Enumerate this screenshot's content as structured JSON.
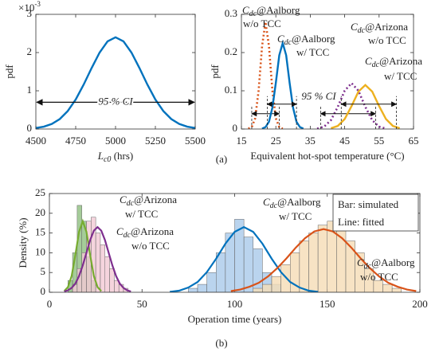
{
  "chart_data": [
    {
      "type": "line",
      "y_label": "pdf",
      "x_label": [
        "L",
        "c0",
        " (hrs)"
      ],
      "y_multiplier": [
        "×10",
        "-3"
      ],
      "xlim": [
        4500,
        5500
      ],
      "ylim": [
        0,
        3
      ],
      "xticks": [
        4500,
        4750,
        5000,
        5250,
        5500
      ],
      "yticks": [
        0,
        1,
        2,
        3
      ],
      "series": [
        {
          "color": "#0072bd",
          "line_style": "solid",
          "x": [
            4500,
            4550,
            4600,
            4650,
            4700,
            4750,
            4800,
            4850,
            4900,
            4950,
            5000,
            5050,
            5100,
            5150,
            5200,
            5250,
            5300,
            5350,
            5400,
            5450,
            5500
          ],
          "values": [
            0.026,
            0.061,
            0.132,
            0.26,
            0.469,
            0.772,
            1.162,
            1.596,
            2.0,
            2.294,
            2.4,
            2.294,
            2.0,
            1.596,
            1.162,
            0.772,
            0.469,
            0.26,
            0.132,
            0.061,
            0.026
          ]
        }
      ],
      "annotation": {
        "text": "95 % CI",
        "x": [
          4500,
          5500
        ],
        "y": 0.7
      }
    },
    {
      "type": "line",
      "y_label": "pdf",
      "x_label": "Equivalent hot-spot temperature (°C)",
      "xlim": [
        15,
        65
      ],
      "ylim": [
        0,
        0.3
      ],
      "xticks": [
        15,
        25,
        35,
        45,
        55,
        65
      ],
      "yticks": [
        0,
        0.1,
        0.2,
        0.3
      ],
      "annotation": {
        "text": "95 % CI"
      },
      "series": [
        {
          "label": [
            "C",
            "dc",
            "@Aalborg",
            "w/o TCC"
          ],
          "color": "#d95319",
          "line_style": "dotted",
          "x": [
            17,
            18,
            19,
            20,
            21,
            22,
            23,
            24,
            25,
            26,
            27
          ],
          "values": [
            0.001,
            0.005,
            0.028,
            0.101,
            0.217,
            0.28,
            0.217,
            0.101,
            0.028,
            0.005,
            0.001
          ],
          "ci": [
            18,
            26
          ],
          "ci_y": 0.04
        },
        {
          "label": [
            "C",
            "dc",
            "@Aalborg",
            "w/ TCC"
          ],
          "color": "#0072bd",
          "line_style": "solid",
          "x": [
            21,
            22,
            23,
            24,
            25,
            26,
            27,
            28,
            29,
            30,
            31,
            32,
            33
          ],
          "values": [
            0.001,
            0.005,
            0.019,
            0.056,
            0.121,
            0.193,
            0.225,
            0.193,
            0.121,
            0.056,
            0.019,
            0.005,
            0.001
          ],
          "ci": [
            22.5,
            31
          ],
          "ci_y": 0.065
        },
        {
          "label": [
            "C",
            "dc",
            "@Arizona",
            "w/o TCC"
          ],
          "color": "#7e2f8e",
          "line_style": "dotted",
          "x": [
            37,
            39,
            41,
            43,
            45,
            47,
            49,
            51,
            53,
            55,
            57
          ],
          "values": [
            0.001,
            0.006,
            0.023,
            0.058,
            0.1,
            0.12,
            0.1,
            0.058,
            0.023,
            0.006,
            0.001
          ],
          "ci": [
            38,
            54
          ],
          "ci_y": 0.04
        },
        {
          "label": [
            "C",
            "dc",
            "@Arizona",
            "w/ TCC"
          ],
          "color": "#edb120",
          "line_style": "solid",
          "x": [
            41,
            43,
            45,
            47,
            49,
            51,
            53,
            55,
            57,
            59,
            61
          ],
          "values": [
            0.002,
            0.008,
            0.026,
            0.06,
            0.098,
            0.115,
            0.098,
            0.06,
            0.026,
            0.008,
            0.002
          ],
          "ci": [
            44,
            60
          ],
          "ci_y": 0.065
        }
      ]
    },
    {
      "type": "histogram",
      "y_label": "Density (%)",
      "x_label": "Operation time (years)",
      "xlim": [
        0,
        200
      ],
      "ylim": [
        0,
        25
      ],
      "xticks": [
        0,
        50,
        100,
        150,
        200
      ],
      "yticks": [
        0,
        5,
        10,
        15,
        20,
        25
      ],
      "legend": [
        "Bar: simulated",
        "Line: fitted"
      ],
      "series": [
        {
          "label": [
            "C",
            "dc",
            "@Arizona",
            "w/ TCC"
          ],
          "color": "#77ac30",
          "bar_color": "#8fbf80",
          "bins": [
            10,
            12.5,
            15,
            17.5,
            20,
            22.5,
            25
          ],
          "values": [
            3,
            10,
            22,
            18,
            9,
            3
          ],
          "fit": {
            "x": [
              8,
              10,
              12,
              14,
              16,
              18,
              20,
              22,
              24,
              26,
              28
            ],
            "values": [
              0.3,
              1.3,
              4.1,
              9.4,
              15.3,
              18,
              15.3,
              9.4,
              4.1,
              1.3,
              0.3
            ]
          }
        },
        {
          "label": [
            "C",
            "dc",
            "@Arizona",
            "w/o TCC"
          ],
          "color": "#7e2f8e",
          "bar_color": "#f2c9d4",
          "bins": [
            12.5,
            15,
            17.5,
            20,
            22.5,
            25,
            27.5,
            30,
            32.5,
            35,
            37.5,
            40,
            42.5
          ],
          "values": [
            2,
            6,
            10,
            18,
            19,
            15,
            12,
            9,
            6,
            3,
            2,
            1
          ],
          "fit": {
            "x": [
              8,
              10,
              12,
              14,
              16,
              18,
              20,
              22,
              24,
              26,
              28,
              30,
              32,
              34,
              36,
              38,
              40,
              42,
              44
            ],
            "values": [
              0.2,
              0.5,
              1.1,
              2.2,
              4.1,
              6.8,
              10.0,
              13.2,
              15.6,
              16.5,
              15.6,
              13.2,
              10.0,
              6.8,
              4.1,
              2.2,
              1.1,
              0.5,
              0.2
            ]
          }
        },
        {
          "label": [
            "C",
            "dc",
            "@Aalborg",
            "w/ TCC"
          ],
          "color": "#0072bd",
          "bar_color": "#a9c9ea",
          "bins": [
            75,
            80,
            85,
            90,
            95,
            100,
            105,
            110,
            115,
            120,
            125
          ],
          "values": [
            1,
            2,
            5,
            10,
            15,
            18.5,
            14,
            11,
            5,
            2
          ],
          "fit": {
            "x": [
              65,
              70,
              75,
              80,
              85,
              90,
              95,
              100,
              105,
              110,
              115,
              120,
              125,
              130,
              135,
              140,
              145
            ],
            "values": [
              0.1,
              0.4,
              1.2,
              2.6,
              5.1,
              8.5,
              12.3,
              15.3,
              16.5,
              15.3,
              12.3,
              8.5,
              5.1,
              2.6,
              1.2,
              0.4,
              0.1
            ]
          }
        },
        {
          "label": [
            "C",
            "dc",
            "@Aalborg",
            "w/o TCC"
          ],
          "color": "#d95319",
          "bar_color": "#f5dcb5",
          "bins": [
            110,
            115,
            120,
            125,
            130,
            135,
            140,
            145,
            150,
            155,
            160,
            165,
            170,
            175,
            180,
            185,
            190
          ],
          "values": [
            1,
            2,
            4,
            7,
            10,
            13,
            15,
            17,
            18,
            16,
            13,
            10,
            6,
            3,
            2,
            1
          ],
          "fit": {
            "x": [
              98,
              103,
              108,
              113,
              118,
              123,
              128,
              133,
              138,
              143,
              148,
              153,
              158,
              163,
              168,
              173,
              178,
              183,
              188,
              193,
              198
            ],
            "values": [
              0.3,
              0.7,
              1.4,
              2.4,
              4.0,
              6.1,
              8.6,
              11.3,
              13.7,
              15.4,
              16,
              15.4,
              13.7,
              11.3,
              8.6,
              6.1,
              4.0,
              2.4,
              1.4,
              0.7,
              0.3
            ]
          }
        }
      ]
    }
  ],
  "captions": [
    "(a)",
    "(b)"
  ]
}
